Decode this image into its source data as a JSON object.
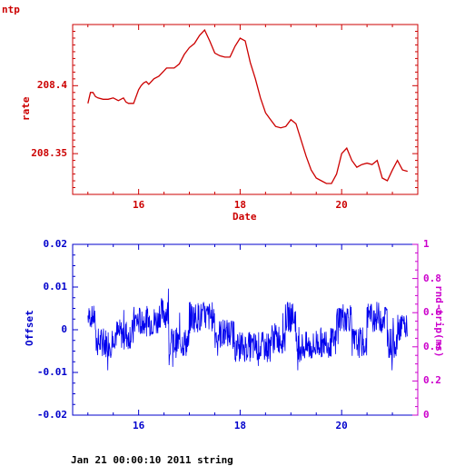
{
  "page": {
    "corner_label": "ntp",
    "footer": "Jan 21 00:00:10 2011 string"
  },
  "colors": {
    "top": "#cc0000",
    "offset": "#0000ee",
    "offset_axis": "#0000cc",
    "rtt_axis": "#cc00cc",
    "text": "#000000"
  },
  "chart_data": [
    {
      "type": "line",
      "xlabel": "Date",
      "ylabel": "rate",
      "xlim": [
        14.7,
        21.5
      ],
      "ylim": [
        208.32,
        208.445
      ],
      "x_ticks": [
        16,
        18,
        20
      ],
      "x_tick_labels": [
        "16",
        "18",
        "20"
      ],
      "y_ticks": [
        208.35,
        208.4
      ],
      "y_tick_labels": [
        "208.35",
        "208.4"
      ],
      "grid": false,
      "series": [
        {
          "x": [
            15.0,
            15.05,
            15.1,
            15.15,
            15.2,
            15.3,
            15.4,
            15.5,
            15.6,
            15.65,
            15.7,
            15.75,
            15.8,
            15.85,
            15.9,
            16.0,
            16.05,
            16.1,
            16.15,
            16.2,
            16.3,
            16.4,
            16.5,
            16.55,
            16.6,
            16.7,
            16.8,
            16.9,
            17.0,
            17.1,
            17.2,
            17.3,
            17.4,
            17.5,
            17.6,
            17.7,
            17.8,
            17.9,
            18.0,
            18.1,
            18.2,
            18.3,
            18.4,
            18.5,
            18.6,
            18.7,
            18.8,
            18.9,
            19.0,
            19.1,
            19.2,
            19.3,
            19.4,
            19.5,
            19.6,
            19.7,
            19.8,
            19.9,
            20.0,
            20.1,
            20.2,
            20.3,
            20.4,
            20.5,
            20.6,
            20.7,
            20.8,
            20.9,
            21.0,
            21.1,
            21.2,
            21.3
          ],
          "y": [
            208.387,
            208.395,
            208.395,
            208.392,
            208.391,
            208.39,
            208.39,
            208.391,
            208.389,
            208.39,
            208.391,
            208.388,
            208.387,
            208.387,
            208.387,
            208.397,
            208.4,
            208.402,
            208.403,
            208.401,
            208.405,
            208.407,
            208.411,
            208.413,
            208.413,
            208.413,
            208.416,
            208.423,
            208.428,
            208.431,
            208.437,
            208.441,
            208.433,
            208.424,
            208.422,
            208.421,
            208.421,
            208.429,
            208.435,
            208.433,
            208.417,
            208.405,
            208.391,
            208.38,
            208.375,
            208.37,
            208.369,
            208.37,
            208.375,
            208.372,
            208.36,
            208.348,
            208.338,
            208.332,
            208.33,
            208.328,
            208.328,
            208.335,
            208.35,
            208.354,
            208.345,
            208.34,
            208.342,
            208.343,
            208.342,
            208.345,
            208.332,
            208.33,
            208.338,
            208.345,
            208.338,
            208.337
          ]
        }
      ]
    },
    {
      "type": "line",
      "ylabel": "Offset",
      "y2label": "rnd-trip(ms)",
      "xlim": [
        14.7,
        21.5
      ],
      "ylim": [
        -0.02,
        0.02
      ],
      "y2lim": [
        0,
        1
      ],
      "x_ticks": [
        16,
        18,
        20
      ],
      "x_tick_labels": [
        "16",
        "18",
        "20"
      ],
      "y_ticks": [
        -0.02,
        -0.01,
        0,
        0.01,
        0.02
      ],
      "y_tick_labels": [
        "-0.02",
        "-0.01",
        "0",
        "0.01",
        "0.02"
      ],
      "y2_ticks": [
        0,
        0.2,
        0.4,
        0.6,
        0.8,
        1
      ],
      "y2_tick_labels": [
        "0",
        "0.2",
        "0.4",
        "0.6",
        "0.8",
        "1"
      ],
      "grid": false,
      "offset_segments": [
        {
          "x": [
            15.0,
            15.15
          ],
          "center": 0.003,
          "amp": 0.003
        },
        {
          "x": [
            15.15,
            15.5
          ],
          "center": -0.003,
          "amp": 0.004
        },
        {
          "x": [
            15.5,
            15.9
          ],
          "center": -0.001,
          "amp": 0.004
        },
        {
          "x": [
            15.9,
            16.4
          ],
          "center": 0.002,
          "amp": 0.004
        },
        {
          "x": [
            16.4,
            16.6
          ],
          "center": 0.004,
          "amp": 0.004
        },
        {
          "x": [
            16.6,
            17.0
          ],
          "center": -0.003,
          "amp": 0.004
        },
        {
          "x": [
            17.0,
            17.5
          ],
          "center": 0.003,
          "amp": 0.004
        },
        {
          "x": [
            17.5,
            17.9
          ],
          "center": -0.001,
          "amp": 0.004
        },
        {
          "x": [
            17.9,
            18.3
          ],
          "center": -0.004,
          "amp": 0.004
        },
        {
          "x": [
            18.3,
            18.6
          ],
          "center": -0.004,
          "amp": 0.004
        },
        {
          "x": [
            18.6,
            18.9
          ],
          "center": -0.002,
          "amp": 0.004
        },
        {
          "x": [
            18.9,
            19.1
          ],
          "center": 0.003,
          "amp": 0.004
        },
        {
          "x": [
            19.1,
            19.5
          ],
          "center": -0.004,
          "amp": 0.004
        },
        {
          "x": [
            19.5,
            19.9
          ],
          "center": -0.003,
          "amp": 0.004
        },
        {
          "x": [
            19.9,
            20.2
          ],
          "center": 0.003,
          "amp": 0.004
        },
        {
          "x": [
            20.2,
            20.5
          ],
          "center": -0.003,
          "amp": 0.004
        },
        {
          "x": [
            20.5,
            20.9
          ],
          "center": 0.003,
          "amp": 0.004
        },
        {
          "x": [
            20.9,
            21.1
          ],
          "center": -0.003,
          "amp": 0.004
        },
        {
          "x": [
            21.1,
            21.3
          ],
          "center": 0.001,
          "amp": 0.004
        }
      ]
    }
  ]
}
